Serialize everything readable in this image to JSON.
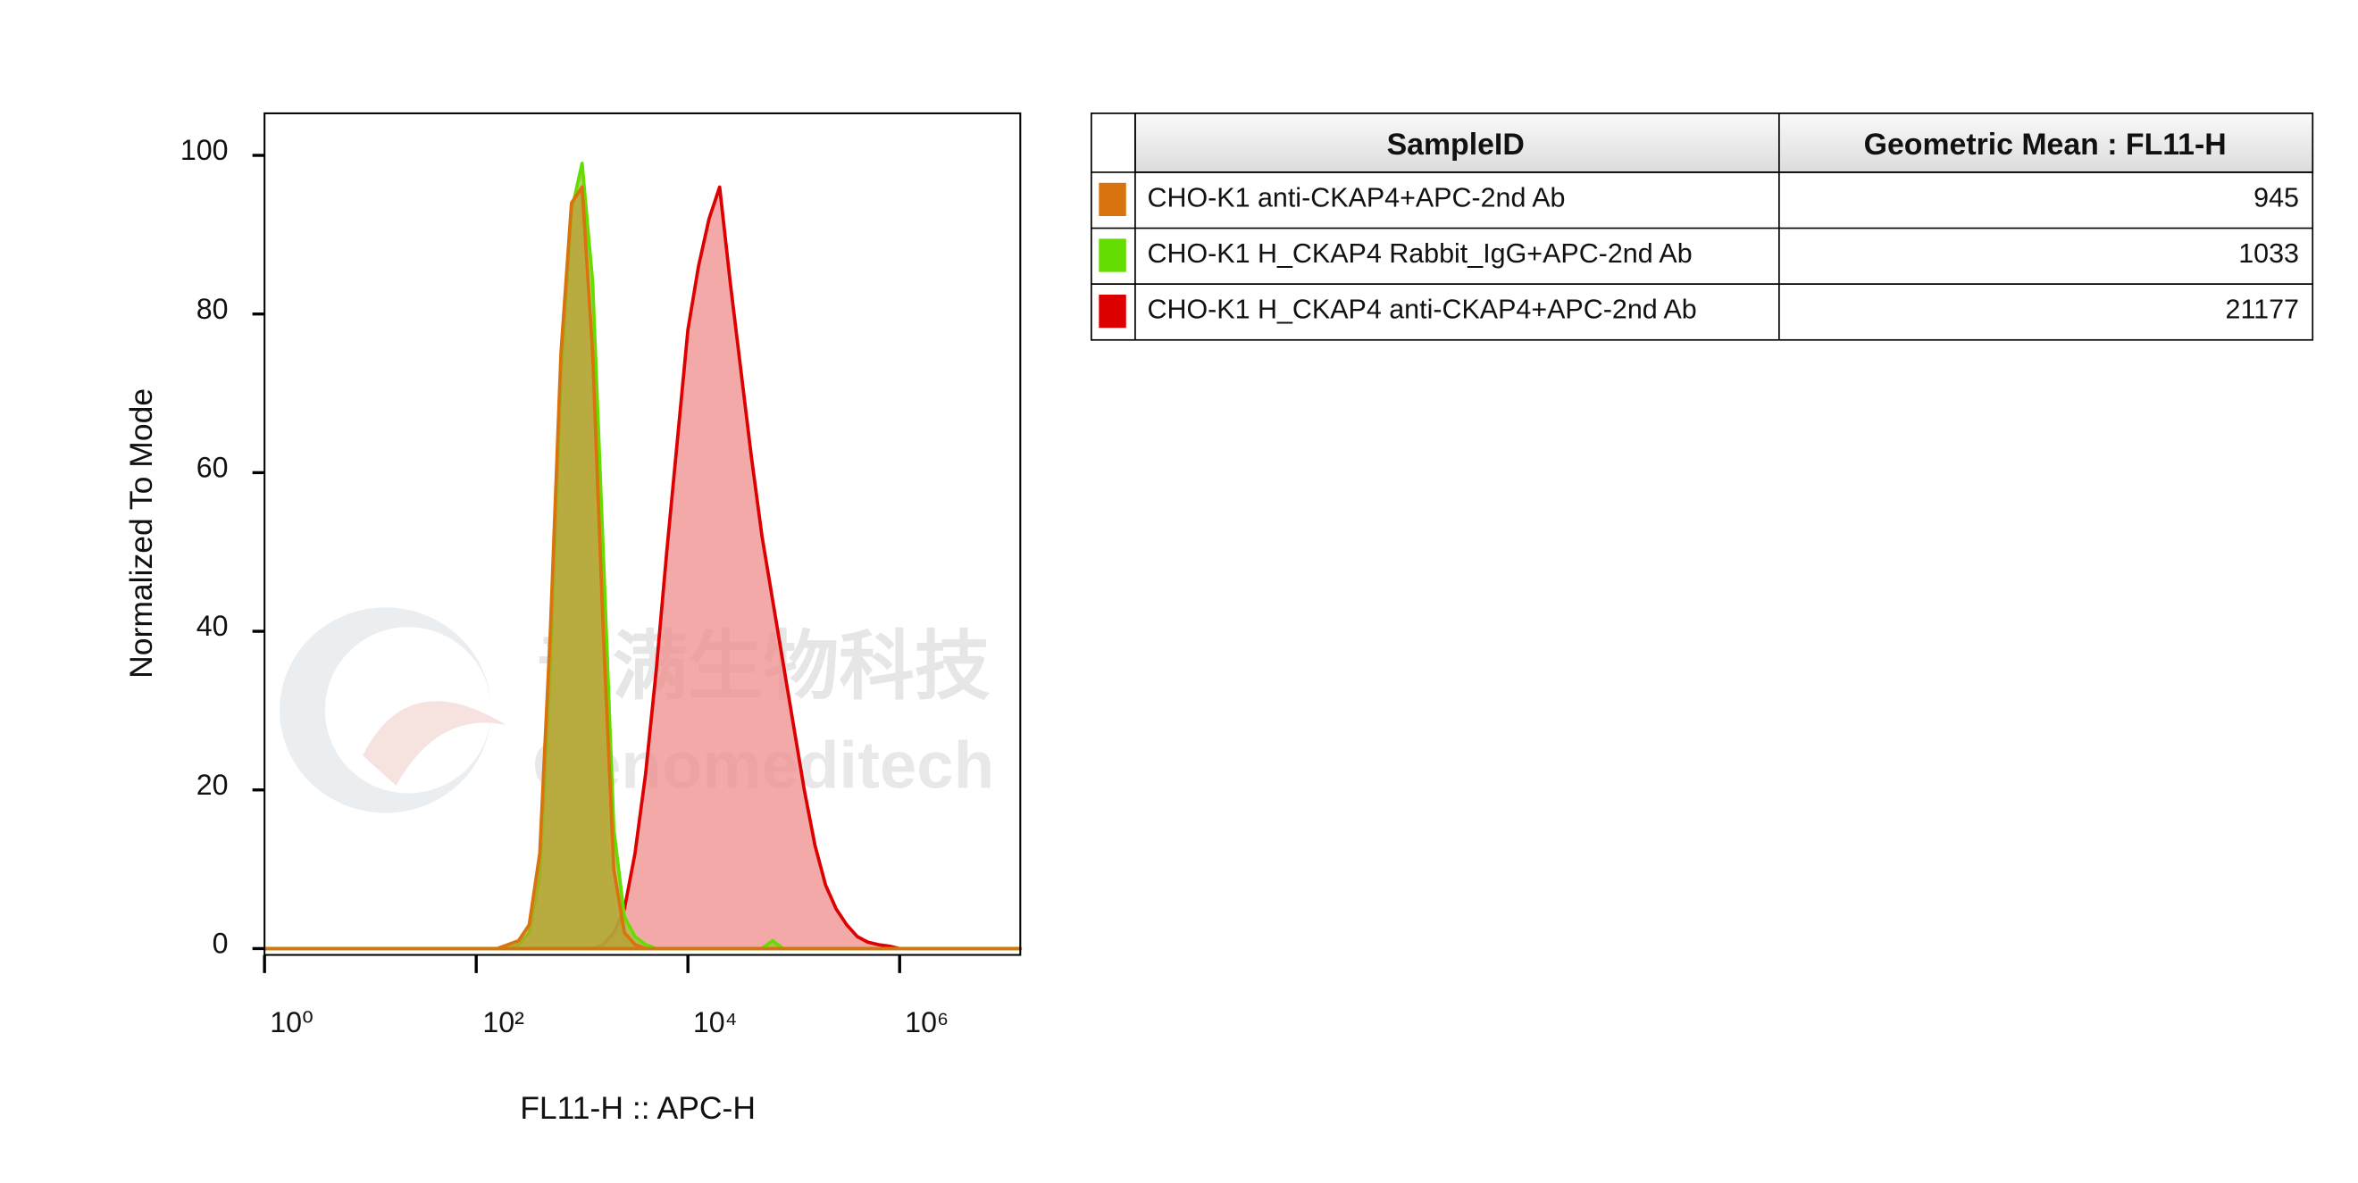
{
  "chart_data": {
    "type": "area",
    "xlabel": "FL11-H :: APC-H",
    "ylabel": "Normalized To Mode",
    "xscale": "log",
    "xlim": [
      1,
      13800000
    ],
    "ylim": [
      -0.8,
      105.3
    ],
    "xticks": [
      {
        "value": 1,
        "label": "10⁰"
      },
      {
        "value": 100,
        "label": "10²"
      },
      {
        "value": 10000,
        "label": "10⁴"
      },
      {
        "value": 1000000,
        "label": "10⁶"
      }
    ],
    "yticks": [
      0,
      20,
      40,
      60,
      80,
      100
    ],
    "x": [
      1,
      100,
      126,
      158,
      200,
      251,
      316,
      398,
      501,
      631,
      794,
      1000,
      1259,
      1585,
      1995,
      2512,
      3162,
      3981,
      5012,
      6310,
      7943,
      10000,
      12589,
      15849,
      19953,
      25119,
      31623,
      39811,
      50119,
      63096,
      79433,
      100000,
      125893,
      158489,
      199526,
      251189,
      316228,
      398107,
      501187,
      630957,
      794328,
      1000000,
      13800000
    ],
    "series": [
      {
        "name": "CHO-K1 anti-CKAP4+APC-2nd Ab",
        "color": "#d9730d",
        "fill": "#b8a030",
        "values": [
          0,
          0,
          0,
          0,
          0.5,
          1,
          3,
          12,
          40,
          75,
          94,
          96,
          75,
          40,
          10,
          2,
          0.5,
          0,
          0,
          0,
          0,
          0,
          0,
          0,
          0,
          0,
          0,
          0,
          0,
          0,
          0,
          0,
          0,
          0,
          0,
          0,
          0,
          0,
          0,
          0,
          0,
          0,
          0
        ]
      },
      {
        "name": "CHO-K1 H_CKAP4 Rabbit_IgG+APC-2nd Ab",
        "color": "#66dd00",
        "fill": "#a0c040",
        "values": [
          0,
          0,
          0,
          0,
          0,
          0.5,
          2,
          9,
          35,
          72,
          93,
          99,
          84,
          50,
          15,
          4,
          1.5,
          0.5,
          0,
          0,
          0,
          0,
          0,
          0,
          0,
          0,
          0,
          0,
          0,
          1,
          0,
          0,
          0,
          0,
          0,
          0,
          0,
          0,
          0,
          0,
          0,
          0,
          0
        ]
      },
      {
        "name": "CHO-K1 H_CKAP4 anti-CKAP4+APC-2nd Ab",
        "color": "#dd0000",
        "fill": "#f08c8c",
        "values": [
          0,
          0,
          0,
          0,
          0,
          0,
          0,
          0,
          0,
          0,
          0,
          0,
          0,
          0.5,
          2,
          5,
          12,
          22,
          35,
          50,
          64,
          78,
          86,
          92,
          96,
          84,
          73,
          62,
          52,
          44,
          36,
          28,
          20,
          13,
          8,
          5,
          3,
          1.5,
          0.8,
          0.5,
          0.3,
          0,
          0
        ]
      }
    ]
  },
  "table": {
    "columns": [
      "SampleID",
      "Geometric Mean : FL11-H"
    ],
    "geometric_means": [
      945,
      1033,
      21177
    ]
  },
  "watermark": {
    "cn": "普满生物科技",
    "en": "Genomeditech"
  }
}
